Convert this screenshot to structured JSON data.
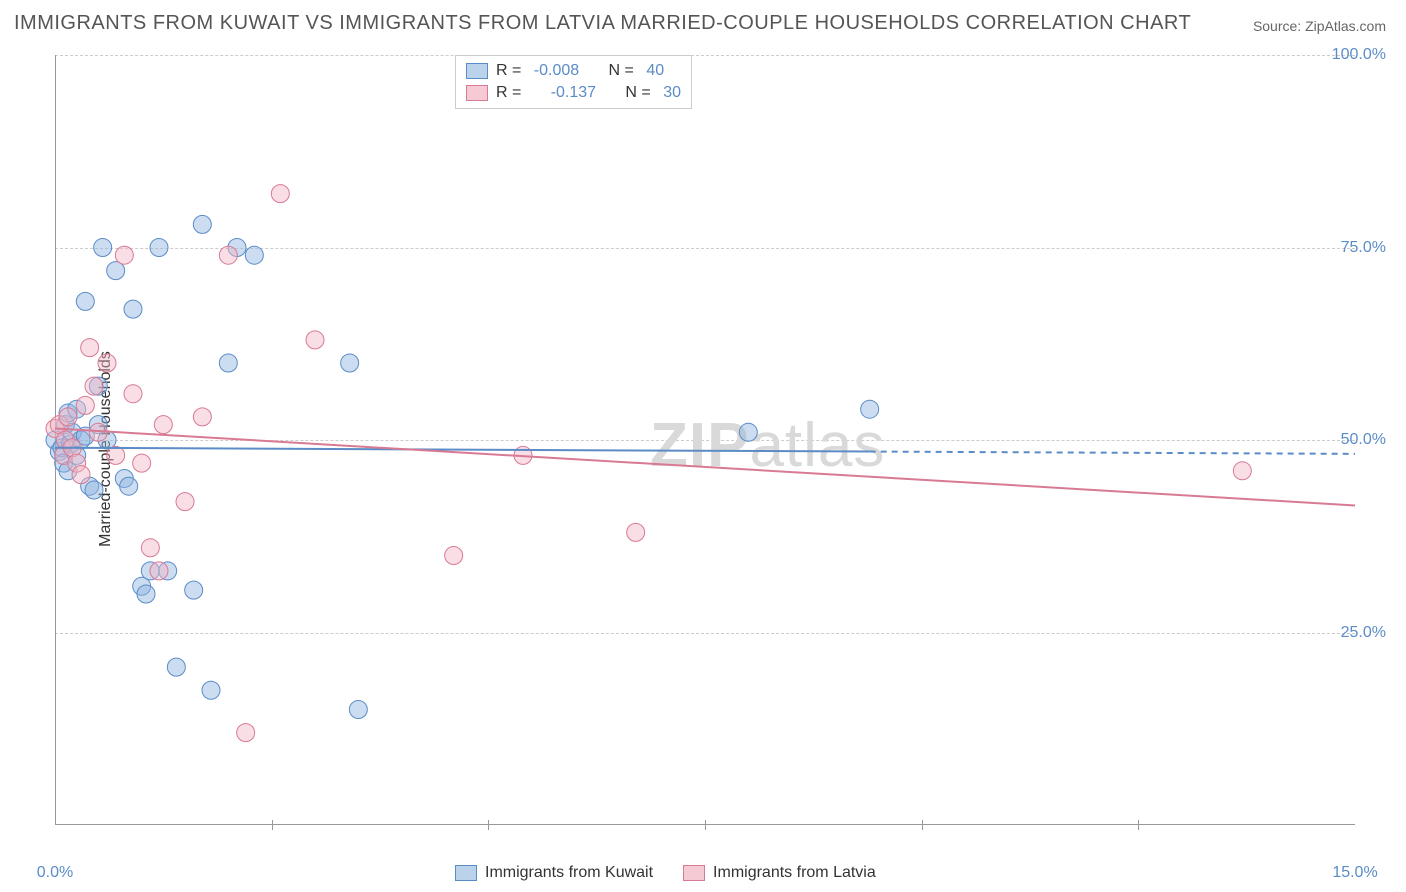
{
  "title": "IMMIGRANTS FROM KUWAIT VS IMMIGRANTS FROM LATVIA MARRIED-COUPLE HOUSEHOLDS CORRELATION CHART",
  "source_label": "Source: ZipAtlas.com",
  "y_axis_label": "Married-couple Households",
  "watermark_zip": "ZIP",
  "watermark_atlas": "atlas",
  "chart": {
    "type": "scatter",
    "xlim": [
      0,
      15
    ],
    "ylim": [
      0,
      100
    ],
    "x_ticks": [
      0,
      15
    ],
    "x_tick_format": "pct1dp",
    "y_ticks": [
      25,
      50,
      75,
      100
    ],
    "y_tick_format": "pct1dp",
    "x_minor_ticks": [
      2.5,
      5.0,
      7.5,
      10.0,
      12.5
    ],
    "grid_color": "#cccccc",
    "axis_color": "#999999",
    "background_color": "#ffffff",
    "marker_radius": 9,
    "marker_opacity": 0.45,
    "line_width": 2,
    "series": [
      {
        "name": "Immigrants from Kuwait",
        "color_fill": "#8fb4df",
        "color_stroke": "#5b8cc7",
        "R": "-0.008",
        "N": "40",
        "points": [
          [
            0.0,
            50.0
          ],
          [
            0.05,
            48.5
          ],
          [
            0.08,
            49.0
          ],
          [
            0.1,
            47.0
          ],
          [
            0.12,
            52.0
          ],
          [
            0.15,
            53.5
          ],
          [
            0.18,
            49.5
          ],
          [
            0.2,
            51.0
          ],
          [
            0.25,
            54.0
          ],
          [
            0.3,
            50.0
          ],
          [
            0.35,
            68.0
          ],
          [
            0.4,
            44.0
          ],
          [
            0.45,
            43.5
          ],
          [
            0.5,
            57.0
          ],
          [
            0.55,
            75.0
          ],
          [
            0.6,
            50.0
          ],
          [
            0.7,
            72.0
          ],
          [
            0.8,
            45.0
          ],
          [
            0.85,
            44.0
          ],
          [
            0.9,
            67.0
          ],
          [
            1.0,
            31.0
          ],
          [
            1.05,
            30.0
          ],
          [
            1.1,
            33.0
          ],
          [
            1.2,
            75.0
          ],
          [
            1.3,
            33.0
          ],
          [
            1.4,
            20.5
          ],
          [
            1.6,
            30.5
          ],
          [
            1.7,
            78.0
          ],
          [
            1.8,
            17.5
          ],
          [
            2.0,
            60.0
          ],
          [
            2.1,
            75.0
          ],
          [
            2.3,
            74.0
          ],
          [
            3.4,
            60.0
          ],
          [
            3.5,
            15.0
          ],
          [
            8.0,
            51.0
          ],
          [
            9.4,
            54.0
          ],
          [
            0.15,
            46.0
          ],
          [
            0.25,
            48.0
          ],
          [
            0.35,
            50.5
          ],
          [
            0.5,
            52.0
          ]
        ],
        "trend": {
          "x1": 0.0,
          "y1": 49.0,
          "x2": 9.4,
          "y2": 48.5,
          "ext_x2": 15.0,
          "ext_y2": 48.2
        }
      },
      {
        "name": "Immigrants from Latvia",
        "color_fill": "#f1b6c5",
        "color_stroke": "#d87a94",
        "R": "-0.137",
        "N": "30",
        "points": [
          [
            0.0,
            51.5
          ],
          [
            0.05,
            52.0
          ],
          [
            0.1,
            48.0
          ],
          [
            0.12,
            50.0
          ],
          [
            0.15,
            53.0
          ],
          [
            0.2,
            49.0
          ],
          [
            0.25,
            47.0
          ],
          [
            0.3,
            45.5
          ],
          [
            0.35,
            54.5
          ],
          [
            0.4,
            62.0
          ],
          [
            0.45,
            57.0
          ],
          [
            0.5,
            51.0
          ],
          [
            0.6,
            60.0
          ],
          [
            0.7,
            48.0
          ],
          [
            0.8,
            74.0
          ],
          [
            0.9,
            56.0
          ],
          [
            1.0,
            47.0
          ],
          [
            1.1,
            36.0
          ],
          [
            1.2,
            33.0
          ],
          [
            1.25,
            52.0
          ],
          [
            1.5,
            42.0
          ],
          [
            1.7,
            53.0
          ],
          [
            2.0,
            74.0
          ],
          [
            2.2,
            12.0
          ],
          [
            2.6,
            82.0
          ],
          [
            3.0,
            63.0
          ],
          [
            4.6,
            35.0
          ],
          [
            5.4,
            48.0
          ],
          [
            6.7,
            38.0
          ],
          [
            13.7,
            46.0
          ]
        ],
        "trend": {
          "x1": 0.0,
          "y1": 51.5,
          "x2": 15.0,
          "y2": 41.5
        }
      }
    ]
  },
  "colors": {
    "axis_text": "#5b8cc7",
    "title_text": "#555555",
    "body_text": "#333333"
  }
}
